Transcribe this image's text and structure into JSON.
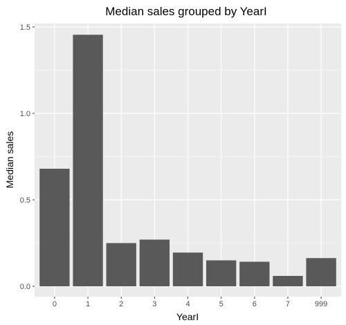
{
  "chart_data": {
    "type": "bar",
    "title": "Median sales grouped by YearI",
    "xlabel": "YearI",
    "ylabel": "Median sales",
    "categories": [
      "0",
      "1",
      "2",
      "3",
      "4",
      "5",
      "6",
      "7",
      "999"
    ],
    "values": [
      0.68,
      1.455,
      0.25,
      0.27,
      0.195,
      0.15,
      0.142,
      0.06,
      0.163
    ],
    "ylim": [
      -0.06,
      1.52
    ],
    "yticks": [
      0.0,
      0.5,
      1.0,
      1.5
    ],
    "ytick_labels": [
      "0.0",
      "0.5",
      "1.0",
      "1.5"
    ],
    "grid": true,
    "legend": "none",
    "colors": {
      "panel": "#ebebeb",
      "grid_major": "#ffffff",
      "bar": "#595959",
      "tick_text": "#4d4d4d",
      "tick_mark": "#333333"
    }
  }
}
